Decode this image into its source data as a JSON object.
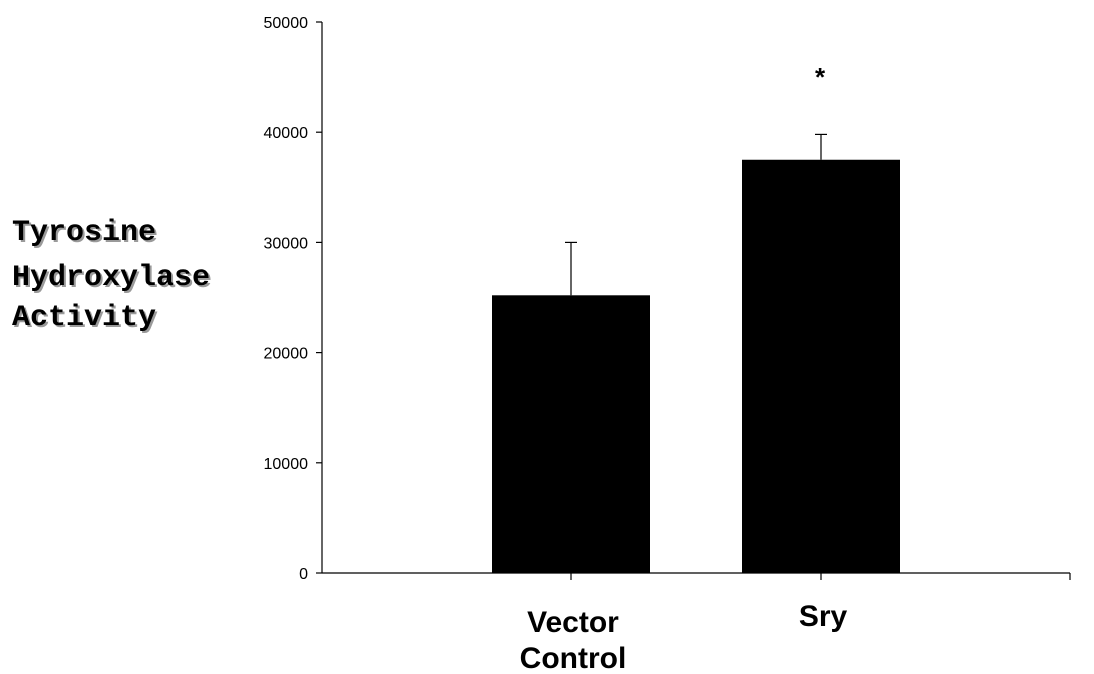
{
  "chart_data": {
    "type": "bar",
    "title": "",
    "ylabel_lines": [
      "Tyrosine",
      "Hydroxylase",
      "Activity"
    ],
    "xlabel": "",
    "ylim": [
      0,
      50000
    ],
    "yticks": [
      0,
      10000,
      20000,
      30000,
      40000,
      50000
    ],
    "ytick_labels": [
      "0",
      "10000",
      "20000",
      "30000",
      "40000",
      "50000"
    ],
    "categories": [
      {
        "lines": [
          "Vector",
          "Control"
        ]
      },
      {
        "lines": [
          "Sry"
        ]
      }
    ],
    "values": [
      25200,
      37500
    ],
    "error_bars": [
      4800,
      2300
    ],
    "annotations": [
      {
        "category_index": 1,
        "text": "*"
      }
    ],
    "bar_color": "#000000",
    "grid": false,
    "legend": "none"
  }
}
